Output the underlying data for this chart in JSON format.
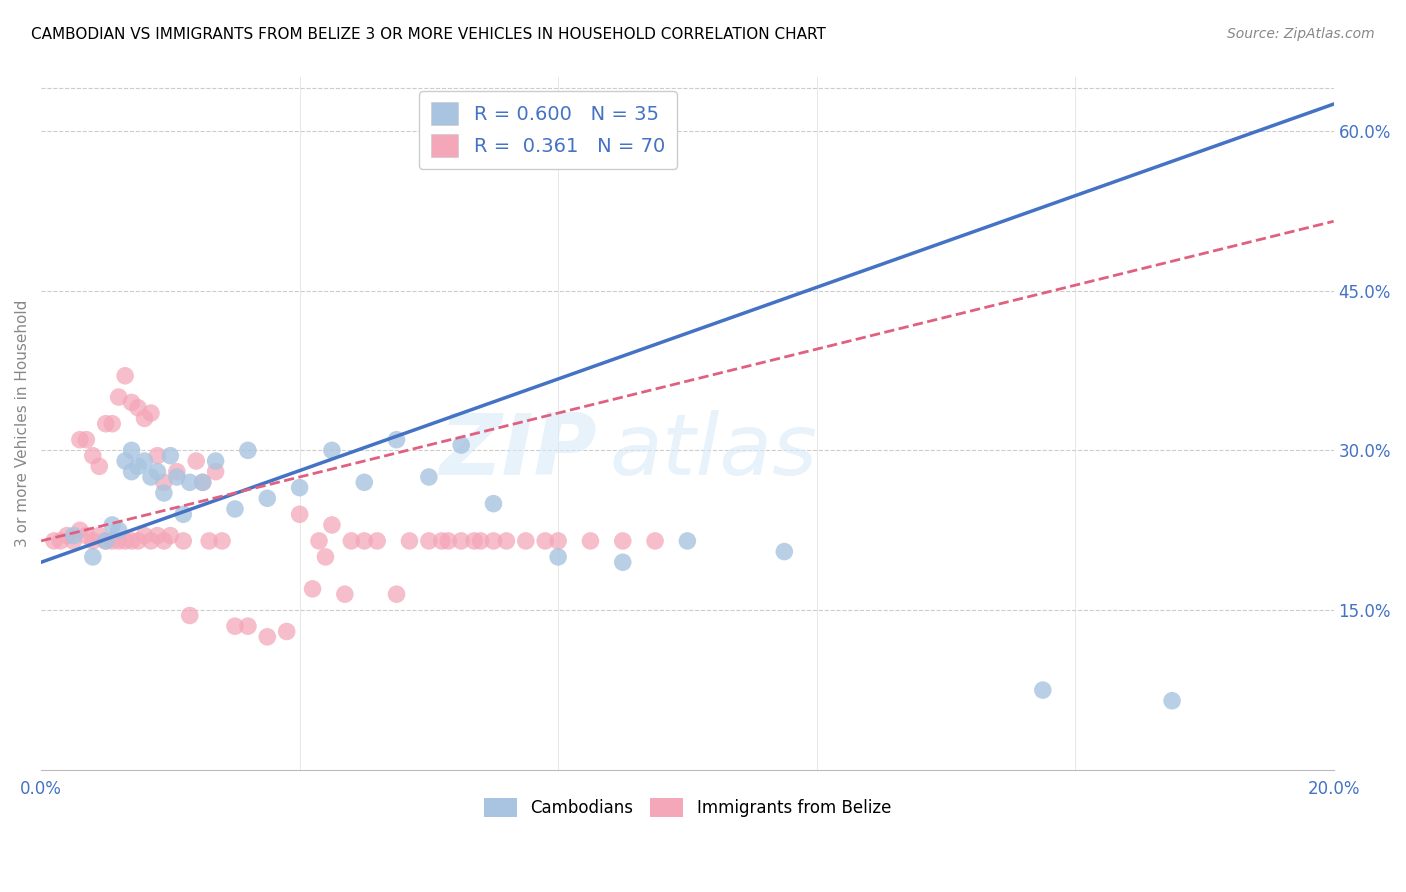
{
  "title": "CAMBODIAN VS IMMIGRANTS FROM BELIZE 3 OR MORE VEHICLES IN HOUSEHOLD CORRELATION CHART",
  "source": "Source: ZipAtlas.com",
  "ylabel": "3 or more Vehicles in Household",
  "xmin": 0.0,
  "xmax": 0.2,
  "ymin": 0.0,
  "ymax": 0.65,
  "x_ticks": [
    0.0,
    0.04,
    0.08,
    0.12,
    0.16,
    0.2
  ],
  "y_ticks_right": [
    0.15,
    0.3,
    0.45,
    0.6
  ],
  "y_tick_labels_right": [
    "15.0%",
    "30.0%",
    "45.0%",
    "60.0%"
  ],
  "cambodian_color": "#a8c4e0",
  "belize_color": "#f4a7b9",
  "cambodian_line_color": "#4472c4",
  "belize_line_color": "#e06080",
  "legend_R_cambodian": "0.600",
  "legend_N_cambodian": "35",
  "legend_R_belize": "0.361",
  "legend_N_belize": "70",
  "watermark": "ZIPatlas",
  "background_color": "#ffffff",
  "cam_line_x0": 0.0,
  "cam_line_y0": 0.195,
  "cam_line_x1": 0.2,
  "cam_line_y1": 0.625,
  "bel_line_x0": 0.0,
  "bel_line_y0": 0.215,
  "bel_line_x1": 0.2,
  "bel_line_y1": 0.515,
  "cambodian_points_x": [
    0.005,
    0.008,
    0.01,
    0.011,
    0.012,
    0.013,
    0.014,
    0.014,
    0.015,
    0.016,
    0.017,
    0.018,
    0.019,
    0.02,
    0.021,
    0.022,
    0.023,
    0.025,
    0.027,
    0.03,
    0.032,
    0.035,
    0.04,
    0.045,
    0.05,
    0.055,
    0.06,
    0.065,
    0.07,
    0.08,
    0.09,
    0.1,
    0.115,
    0.155,
    0.175
  ],
  "cambodian_points_y": [
    0.22,
    0.2,
    0.215,
    0.23,
    0.225,
    0.29,
    0.28,
    0.3,
    0.285,
    0.29,
    0.275,
    0.28,
    0.26,
    0.295,
    0.275,
    0.24,
    0.27,
    0.27,
    0.29,
    0.245,
    0.3,
    0.255,
    0.265,
    0.3,
    0.27,
    0.31,
    0.275,
    0.305,
    0.25,
    0.2,
    0.195,
    0.215,
    0.205,
    0.075,
    0.065
  ],
  "belize_points_x": [
    0.002,
    0.003,
    0.004,
    0.005,
    0.006,
    0.006,
    0.007,
    0.007,
    0.008,
    0.008,
    0.009,
    0.009,
    0.01,
    0.01,
    0.011,
    0.011,
    0.012,
    0.012,
    0.013,
    0.013,
    0.014,
    0.014,
    0.015,
    0.015,
    0.016,
    0.016,
    0.017,
    0.017,
    0.018,
    0.018,
    0.019,
    0.019,
    0.02,
    0.021,
    0.022,
    0.023,
    0.024,
    0.025,
    0.026,
    0.027,
    0.028,
    0.03,
    0.032,
    0.035,
    0.038,
    0.04,
    0.042,
    0.043,
    0.044,
    0.045,
    0.047,
    0.048,
    0.05,
    0.052,
    0.055,
    0.057,
    0.06,
    0.062,
    0.063,
    0.065,
    0.067,
    0.068,
    0.07,
    0.072,
    0.075,
    0.078,
    0.08,
    0.085,
    0.09,
    0.095
  ],
  "belize_points_y": [
    0.215,
    0.215,
    0.22,
    0.215,
    0.225,
    0.31,
    0.22,
    0.31,
    0.215,
    0.295,
    0.22,
    0.285,
    0.215,
    0.325,
    0.215,
    0.325,
    0.215,
    0.35,
    0.215,
    0.37,
    0.215,
    0.345,
    0.215,
    0.34,
    0.22,
    0.33,
    0.215,
    0.335,
    0.22,
    0.295,
    0.215,
    0.27,
    0.22,
    0.28,
    0.215,
    0.145,
    0.29,
    0.27,
    0.215,
    0.28,
    0.215,
    0.135,
    0.135,
    0.125,
    0.13,
    0.24,
    0.17,
    0.215,
    0.2,
    0.23,
    0.165,
    0.215,
    0.215,
    0.215,
    0.165,
    0.215,
    0.215,
    0.215,
    0.215,
    0.215,
    0.215,
    0.215,
    0.215,
    0.215,
    0.215,
    0.215,
    0.215,
    0.215,
    0.215,
    0.215
  ]
}
